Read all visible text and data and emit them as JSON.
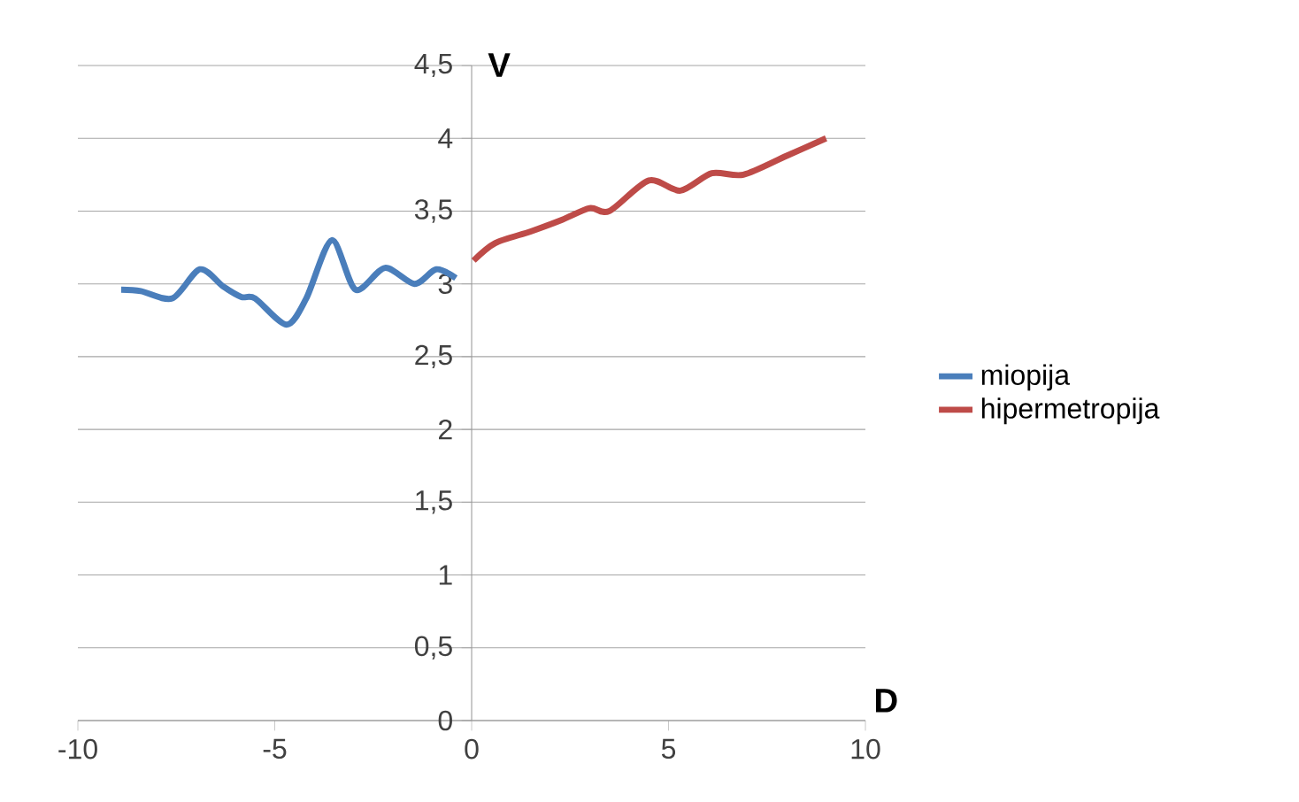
{
  "chart_data": {
    "type": "line",
    "xlabel": "D",
    "ylabel": "V",
    "xlim": [
      -10,
      10
    ],
    "ylim": [
      0,
      4.5
    ],
    "xticks": [
      -10,
      -5,
      0,
      5,
      10
    ],
    "yticks": [
      0,
      {
        "value": 0.5,
        "label": "0,5"
      },
      1,
      {
        "value": 1.5,
        "label": "1,5"
      },
      2,
      {
        "value": 2.5,
        "label": "2,5"
      },
      3,
      {
        "value": 3.5,
        "label": "3,5"
      },
      4,
      {
        "value": 4.5,
        "label": "4,5"
      }
    ],
    "grid": "y",
    "legend": "right",
    "series": [
      {
        "name": "miopija",
        "color": "#4a7ebb",
        "x": [
          -8.9,
          -8.4,
          -7.6,
          -6.9,
          -6.3,
          -5.85,
          -5.5,
          -4.7,
          -4.2,
          -3.55,
          -2.95,
          -2.2,
          -1.45,
          -0.9,
          -0.4
        ],
        "values": [
          2.96,
          2.95,
          2.9,
          3.1,
          2.98,
          2.91,
          2.9,
          2.72,
          2.9,
          3.3,
          2.96,
          3.11,
          3.0,
          3.1,
          3.04
        ]
      },
      {
        "name": "hipermetropija",
        "color": "#be4b48",
        "x": [
          0.05,
          0.6,
          1.5,
          2.3,
          3.0,
          3.5,
          4.5,
          5.3,
          6.1,
          6.9,
          8.0,
          9.0
        ],
        "values": [
          3.16,
          3.28,
          3.36,
          3.44,
          3.52,
          3.5,
          3.71,
          3.64,
          3.76,
          3.75,
          3.88,
          4.0
        ]
      }
    ]
  }
}
